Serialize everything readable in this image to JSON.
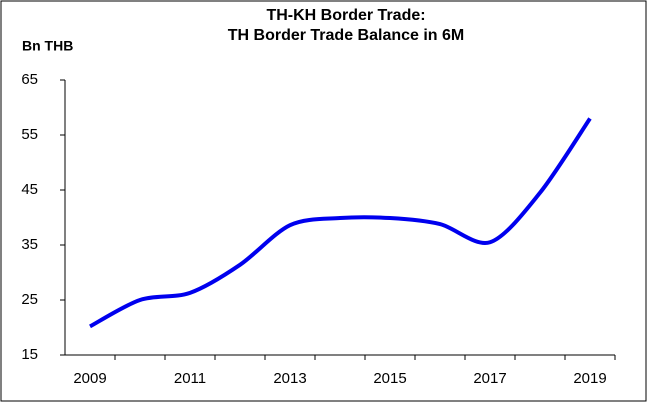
{
  "chart_data": {
    "type": "line",
    "title": [
      "TH-KH Border Trade:",
      "TH Border Trade Balance in 6M"
    ],
    "y_label": "Bn THB",
    "categories": [
      "2009",
      null,
      "2011",
      null,
      "2013",
      null,
      "2015",
      null,
      "2017",
      null,
      "2019"
    ],
    "series": [
      {
        "name": "TH Border Trade Balance",
        "color": "#0000ee",
        "values": [
          20.2,
          25.0,
          26.3,
          31.4,
          38.6,
          39.9,
          39.9,
          38.8,
          35.5,
          44.5,
          58.0
        ]
      }
    ],
    "ylim": [
      15,
      65
    ],
    "yticks": [
      15,
      25,
      35,
      45,
      55,
      65
    ],
    "grid": false
  }
}
